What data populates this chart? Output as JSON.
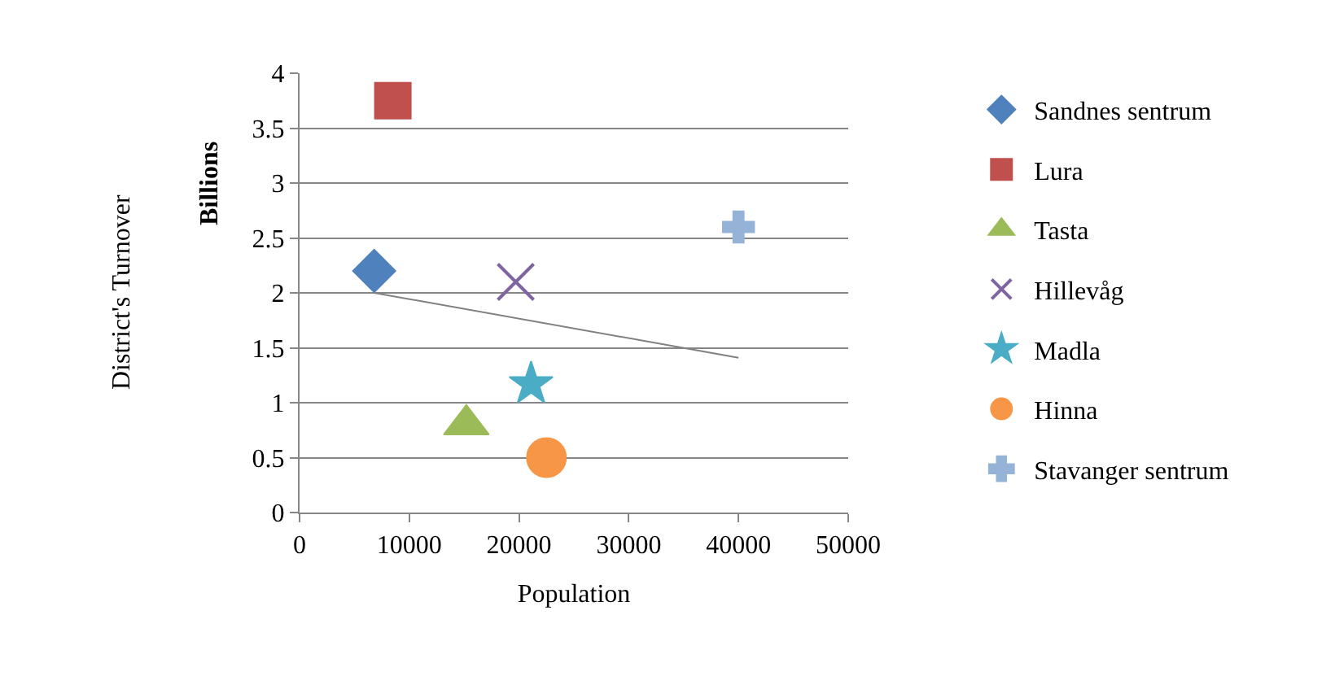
{
  "chart_data": {
    "type": "scatter",
    "xlabel": "Population",
    "ylabel": "District's Turnover",
    "annotations": [
      "Billions"
    ],
    "xlim": [
      0,
      50000
    ],
    "xticks": [
      0,
      10000,
      20000,
      30000,
      40000,
      50000
    ],
    "ylim": [
      0,
      4
    ],
    "yticks": [
      0,
      0.5,
      1,
      1.5,
      2,
      2.5,
      3,
      3.5,
      4
    ],
    "grid": "y",
    "legend": "right",
    "series": [
      {
        "name": "Sandnes sentrum",
        "color": "#4f81bd",
        "marker": "diamond",
        "x": [
          6800
        ],
        "values": [
          2.2
        ]
      },
      {
        "name": "Lura",
        "color": "#c0504d",
        "marker": "square",
        "x": [
          8500
        ],
        "values": [
          3.75
        ]
      },
      {
        "name": "Tasta",
        "color": "#9bbb59",
        "marker": "triangle",
        "x": [
          15200
        ],
        "values": [
          0.8
        ]
      },
      {
        "name": "Hillevåg",
        "color": "#8064a2",
        "marker": "x",
        "x": [
          19700
        ],
        "values": [
          2.1
        ]
      },
      {
        "name": "Madla",
        "color": "#4bacc6",
        "marker": "star",
        "x": [
          21100
        ],
        "values": [
          1.17
        ]
      },
      {
        "name": "Hinna",
        "color": "#f79646",
        "marker": "circle",
        "x": [
          22500
        ],
        "values": [
          0.5
        ]
      },
      {
        "name": "Stavanger sentrum",
        "color": "#95b3d7",
        "marker": "cross",
        "x": [
          40000
        ],
        "values": [
          2.6
        ]
      },
      {
        "type": "line",
        "color": "#808080",
        "marker": "none",
        "x": [
          6800,
          40000
        ],
        "values": [
          2.0,
          1.41
        ]
      }
    ]
  }
}
